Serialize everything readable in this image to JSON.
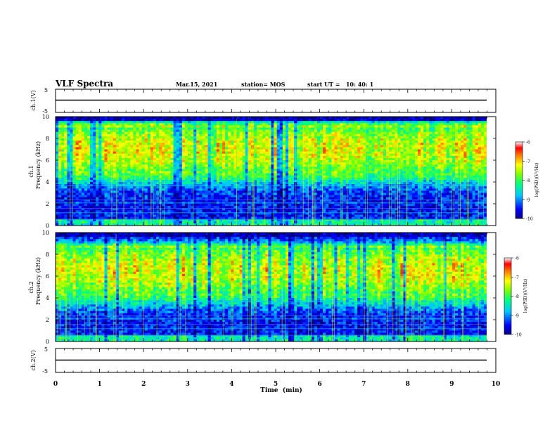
{
  "header": {
    "title": "VLF Spectra",
    "date": "Mar.15, 2021",
    "station": "station= MOS",
    "start": "start UT =   10: 40: 1"
  },
  "chart_data": [
    {
      "type": "line",
      "id": "ch1-voltage",
      "ylabel": "ch.1(V)",
      "ylim": [
        -5,
        5
      ],
      "yticks": [
        "5",
        "-5"
      ],
      "baseline": 0
    },
    {
      "type": "heatmap",
      "id": "ch1-spectrogram",
      "ylabel_line1": "ch.1",
      "ylabel_line2": "Frequency (kHz)",
      "ylim": [
        0,
        10
      ],
      "yticks": [
        "0",
        "2",
        "4",
        "6",
        "8",
        "10"
      ],
      "colorbar": {
        "label": "log(PSD)(V²/Hz)",
        "range": [
          -10,
          -6
        ],
        "ticks": [
          "-6",
          "-7",
          "-8",
          "-9",
          "-10"
        ]
      },
      "dominant_band_khz": [
        5,
        9
      ],
      "dominant_level": -7
    },
    {
      "type": "heatmap",
      "id": "ch2-spectrogram",
      "ylabel_line1": "ch.2",
      "ylabel_line2": "Frequency (kHz)",
      "ylim": [
        0,
        10
      ],
      "yticks": [
        "0",
        "2",
        "4",
        "6",
        "8",
        "10"
      ],
      "colorbar": {
        "label": "log(PSD)(V²/Hz)",
        "range": [
          -10,
          -6
        ],
        "ticks": [
          "-6",
          "-7",
          "-8",
          "-9",
          "-10"
        ]
      },
      "dominant_band_khz": [
        4.5,
        8.5
      ],
      "dominant_level": -7
    },
    {
      "type": "line",
      "id": "ch2-voltage",
      "ylabel": "ch.2(V)",
      "ylim": [
        -5,
        5
      ],
      "yticks": [
        "5",
        "-5"
      ],
      "baseline": 0
    }
  ],
  "xaxis": {
    "label": "Time  (min)",
    "xlim": [
      0,
      10
    ],
    "ticks": [
      "0",
      "1",
      "2",
      "3",
      "4",
      "5",
      "6",
      "7",
      "8",
      "9",
      "10"
    ],
    "data_end_min": 9.85
  }
}
